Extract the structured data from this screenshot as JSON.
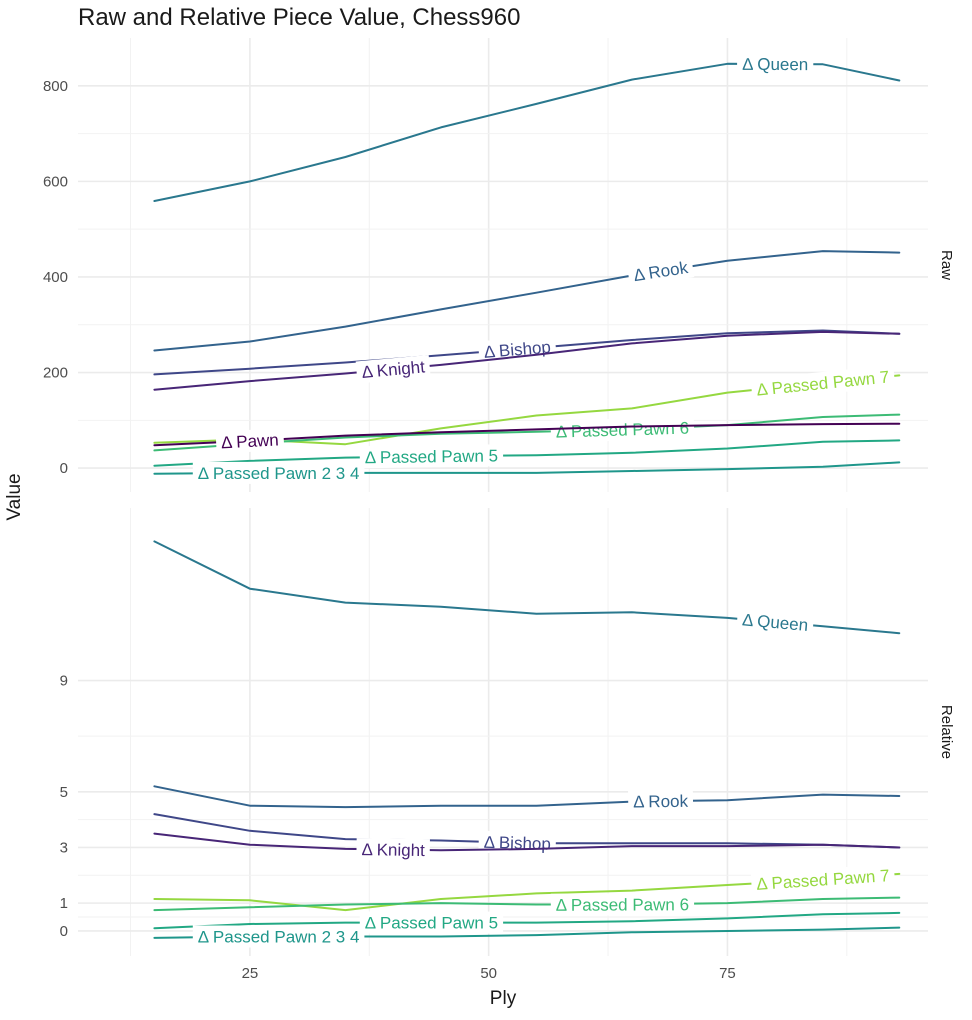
{
  "chart_data": {
    "type": "line",
    "title": "Raw and Relative Piece Value, Chess960",
    "xlabel": "Ply",
    "ylabel": "Value",
    "x": [
      15,
      25,
      35,
      45,
      55,
      65,
      75,
      85,
      93
    ],
    "xlim": [
      7,
      96
    ],
    "xticks": [
      25,
      50,
      75
    ],
    "grid": true,
    "legend": "none",
    "panels": [
      {
        "name": "Raw",
        "ylim": [
          -50,
          900
        ],
        "yticks": [
          0,
          200,
          400,
          600,
          800
        ],
        "series": [
          {
            "name": "Δ Queen",
            "color": "#2A788E",
            "values": [
              559,
              600,
              651,
              713,
              762,
              813,
              846,
              845,
              811
            ],
            "label_x": 80
          },
          {
            "name": "Δ Rook",
            "color": "#33638D",
            "values": [
              246,
              265,
              296,
              332,
              367,
              403,
              434,
              454,
              451
            ],
            "label_x": 68
          },
          {
            "name": "Δ Bishop",
            "color": "#3F4788",
            "values": [
              196,
              208,
              221,
              236,
              252,
              268,
              282,
              288,
              281
            ],
            "label_x": 53
          },
          {
            "name": "Δ Knight",
            "color": "#482677",
            "values": [
              164,
              182,
              198,
              216,
              237,
              261,
              277,
              285,
              281
            ],
            "label_x": 40
          },
          {
            "name": "Δ Passed Pawn 7",
            "color": "#95D840",
            "values": [
              53,
              60,
              50,
              83,
              110,
              125,
              158,
              178,
              194
            ],
            "label_x": 85
          },
          {
            "name": "Δ Passed Pawn 6",
            "color": "#3CBB75",
            "values": [
              37,
              51,
              64,
              72,
              76,
              81,
              90,
              107,
              112
            ],
            "label_x": 64
          },
          {
            "name": "Δ Pawn",
            "color": "#440154",
            "values": [
              48,
              57,
              68,
              75,
              81,
              87,
              90,
              92,
              93
            ],
            "label_x": 25
          },
          {
            "name": "Δ Passed Pawn 5",
            "color": "#22A884",
            "values": [
              5,
              15,
              22,
              25,
              27,
              32,
              41,
              55,
              58
            ],
            "label_x": 44
          },
          {
            "name": "Δ Passed Pawn 2 3 4",
            "color": "#1F968B",
            "values": [
              -12,
              -10,
              -10,
              -10,
              -10,
              -6,
              -2,
              3,
              12
            ],
            "label_x": 28
          }
        ]
      },
      {
        "name": "Relative",
        "ylim": [
          -0.9,
          15.2
        ],
        "yticks": [
          0,
          1,
          3,
          5,
          9
        ],
        "series": [
          {
            "name": "Δ Queen",
            "color": "#2A788E",
            "values": [
              14.0,
              12.3,
              11.8,
              11.65,
              11.4,
              11.45,
              11.25,
              10.95,
              10.7
            ],
            "label_x": 80
          },
          {
            "name": "Δ Rook",
            "color": "#33638D",
            "values": [
              5.2,
              4.5,
              4.45,
              4.5,
              4.5,
              4.65,
              4.7,
              4.9,
              4.85
            ],
            "label_x": 68
          },
          {
            "name": "Δ Bishop",
            "color": "#3F4788",
            "values": [
              4.2,
              3.6,
              3.3,
              3.25,
              3.15,
              3.15,
              3.15,
              3.1,
              3.0
            ],
            "label_x": 53
          },
          {
            "name": "Δ Knight",
            "color": "#482677",
            "values": [
              3.5,
              3.1,
              2.95,
              2.9,
              2.95,
              3.05,
              3.05,
              3.1,
              3.0
            ],
            "label_x": 40
          },
          {
            "name": "Δ Passed Pawn 7",
            "color": "#95D840",
            "values": [
              1.15,
              1.1,
              0.75,
              1.15,
              1.35,
              1.45,
              1.65,
              1.85,
              2.05
            ],
            "label_x": 85
          },
          {
            "name": "Δ Passed Pawn 6",
            "color": "#3CBB75",
            "values": [
              0.75,
              0.85,
              0.95,
              1.0,
              0.95,
              0.95,
              1.0,
              1.15,
              1.2
            ],
            "label_x": 64
          },
          {
            "name": "Δ Passed Pawn 5",
            "color": "#22A884",
            "values": [
              0.1,
              0.25,
              0.3,
              0.3,
              0.3,
              0.35,
              0.45,
              0.6,
              0.65
            ],
            "label_x": 44
          },
          {
            "name": "Δ Passed Pawn 2 3 4",
            "color": "#1F968B",
            "values": [
              -0.25,
              -0.2,
              -0.2,
              -0.2,
              -0.15,
              -0.05,
              0.0,
              0.05,
              0.12
            ],
            "label_x": 28
          }
        ]
      }
    ]
  }
}
